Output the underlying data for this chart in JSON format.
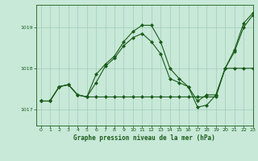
{
  "title": "Graphe pression niveau de la mer (hPa)",
  "bg_color": "#c8e8d8",
  "plot_bg_color": "#c8e8d8",
  "line_color": "#1a5c1a",
  "grid_color": "#a0ccb8",
  "xlim": [
    -0.5,
    23
  ],
  "ylim": [
    1016.6,
    1019.55
  ],
  "yticks": [
    1017,
    1018,
    1019
  ],
  "xticks": [
    0,
    1,
    2,
    3,
    4,
    5,
    6,
    7,
    8,
    9,
    10,
    11,
    12,
    13,
    14,
    15,
    16,
    17,
    18,
    19,
    20,
    21,
    22,
    23
  ],
  "series": [
    {
      "x": [
        0,
        1,
        2,
        3,
        4,
        5,
        6,
        7,
        8,
        9,
        10,
        11,
        12,
        13,
        14,
        15,
        16,
        17,
        18,
        19,
        20,
        21,
        22,
        23
      ],
      "y": [
        1017.2,
        1017.2,
        1017.55,
        1017.6,
        1017.35,
        1017.3,
        1017.3,
        1017.3,
        1017.3,
        1017.3,
        1017.3,
        1017.3,
        1017.3,
        1017.3,
        1017.3,
        1017.3,
        1017.3,
        1017.3,
        1017.3,
        1017.3,
        1018.0,
        1018.0,
        1018.0,
        1018.0
      ]
    },
    {
      "x": [
        0,
        1,
        2,
        3,
        4,
        5,
        6,
        7,
        8,
        9,
        10,
        11,
        12,
        13,
        14,
        15,
        16,
        17,
        18,
        19,
        20,
        21,
        22,
        23
      ],
      "y": [
        1017.2,
        1017.2,
        1017.55,
        1017.6,
        1017.35,
        1017.3,
        1017.65,
        1018.05,
        1018.25,
        1018.55,
        1018.75,
        1018.85,
        1018.65,
        1018.35,
        1017.75,
        1017.65,
        1017.55,
        1017.2,
        1017.35,
        1017.35,
        1018.0,
        1018.45,
        1019.1,
        1019.35
      ]
    },
    {
      "x": [
        0,
        1,
        2,
        3,
        4,
        5,
        6,
        7,
        8,
        9,
        10,
        11,
        12,
        13,
        14,
        15,
        16,
        17,
        18,
        19,
        20,
        21,
        22,
        23
      ],
      "y": [
        1017.2,
        1017.2,
        1017.55,
        1017.6,
        1017.35,
        1017.3,
        1017.85,
        1018.1,
        1018.3,
        1018.65,
        1018.9,
        1019.05,
        1019.05,
        1018.65,
        1018.0,
        1017.75,
        1017.55,
        1017.05,
        1017.1,
        1017.35,
        1018.0,
        1018.4,
        1019.0,
        1019.3
      ]
    }
  ]
}
